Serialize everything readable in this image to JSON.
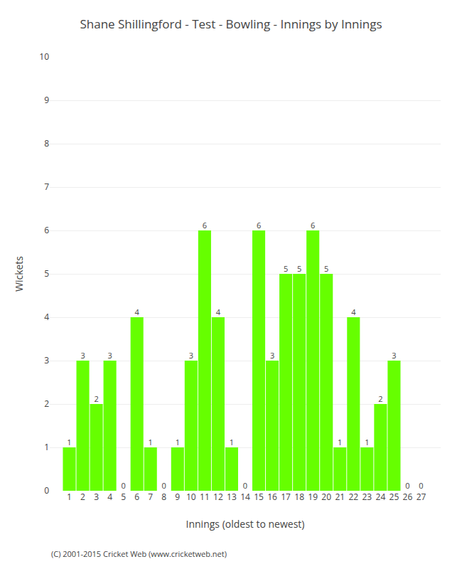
{
  "chart_data": {
    "type": "bar",
    "title": "Shane Shillingford - Test - Bowling - Innings by Innings",
    "xlabel": "Innings (oldest to newest)",
    "ylabel": "Wickets",
    "categories": [
      1,
      2,
      3,
      4,
      5,
      6,
      7,
      8,
      9,
      10,
      11,
      12,
      13,
      14,
      15,
      16,
      17,
      18,
      19,
      20,
      21,
      22,
      23,
      24,
      25,
      26,
      27
    ],
    "values": [
      1,
      3,
      2,
      3,
      0,
      4,
      1,
      0,
      1,
      3,
      6,
      4,
      1,
      0,
      6,
      3,
      5,
      5,
      6,
      5,
      1,
      4,
      1,
      2,
      3,
      0,
      0
    ],
    "color": "#66ff00",
    "ylim": [
      0,
      10
    ],
    "yticks": [
      0,
      1,
      2,
      3,
      4,
      5,
      6,
      7,
      8,
      9,
      10
    ],
    "grid": true,
    "data_labels": true,
    "annotations": [
      "(C) 2001-2015 Cricket Web (www.cricketweb.net)"
    ]
  }
}
